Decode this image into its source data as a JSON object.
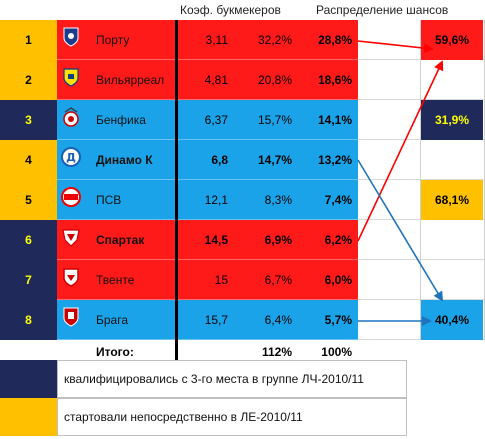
{
  "header": {
    "odds_label": "Коэф. букмекеров",
    "distribution_label": "Распределение шансов"
  },
  "colors": {
    "red": "#ff1a1a",
    "blue": "#1aa3e8",
    "navy": "#1f2a5a",
    "gold": "#ffc000",
    "yellow_text": "#ffff00",
    "arrow_red": "#ff0000",
    "arrow_blue": "#1e73be"
  },
  "rows": [
    {
      "rank": "1",
      "team": "Порту",
      "odds": "3,11",
      "pct": "32,2%",
      "share": "28,8%",
      "bg": "red",
      "rank_bg": "gold",
      "rank_color": "#000000",
      "bold": false,
      "logo": "porto-logo-icon"
    },
    {
      "rank": "2",
      "team": "Вильярреал",
      "odds": "4,81",
      "pct": "20,8%",
      "share": "18,6%",
      "bg": "red",
      "rank_bg": "gold",
      "rank_color": "#000000",
      "bold": false,
      "logo": "villarreal-logo-icon"
    },
    {
      "rank": "3",
      "team": "Бенфика",
      "odds": "6,37",
      "pct": "15,7%",
      "share": "14,1%",
      "bg": "blue",
      "rank_bg": "navy",
      "rank_color": "#ffff00",
      "bold": false,
      "logo": "benfica-logo-icon"
    },
    {
      "rank": "4",
      "team": "Динамо К",
      "odds": "6,8",
      "pct": "14,7%",
      "share": "13,2%",
      "bg": "blue",
      "rank_bg": "gold",
      "rank_color": "#000000",
      "bold": true,
      "logo": "dynamo-logo-icon"
    },
    {
      "rank": "5",
      "team": "ПСВ",
      "odds": "12,1",
      "pct": "8,3%",
      "share": "7,4%",
      "bg": "blue",
      "rank_bg": "gold",
      "rank_color": "#000000",
      "bold": false,
      "logo": "psv-logo-icon"
    },
    {
      "rank": "6",
      "team": "Спартак",
      "odds": "14,5",
      "pct": "6,9%",
      "share": "6,2%",
      "bg": "red",
      "rank_bg": "navy",
      "rank_color": "#ffff00",
      "bold": true,
      "logo": "spartak-logo-icon"
    },
    {
      "rank": "7",
      "team": "Твенте",
      "odds": "15",
      "pct": "6,7%",
      "share": "6,0%",
      "bg": "red",
      "rank_bg": "navy",
      "rank_color": "#ffff00",
      "bold": false,
      "logo": "twente-logo-icon"
    },
    {
      "rank": "8",
      "team": "Брага",
      "odds": "15,7",
      "pct": "6,4%",
      "share": "5,7%",
      "bg": "blue",
      "rank_bg": "navy",
      "rank_color": "#ffff00",
      "bold": false,
      "logo": "braga-logo-icon"
    }
  ],
  "totals": {
    "label": "Итого:",
    "pct": "112%",
    "share": "100%"
  },
  "results": [
    {
      "value": "59,6%",
      "bg": "red",
      "color": "#000000"
    },
    {
      "value": "31,9%",
      "bg": "navy",
      "color": "#ffff00"
    },
    {
      "value": "68,1%",
      "bg": "gold",
      "color": "#000000"
    },
    {
      "value": "40,4%",
      "bg": "blue",
      "color": "#000000"
    }
  ],
  "legend": [
    {
      "text": "квалифицировались с 3-го места в группе ЛЧ-2010/11",
      "color": "navy"
    },
    {
      "text": "стартовали непосредственно в ЛЕ-2010/11",
      "color": "gold"
    }
  ]
}
